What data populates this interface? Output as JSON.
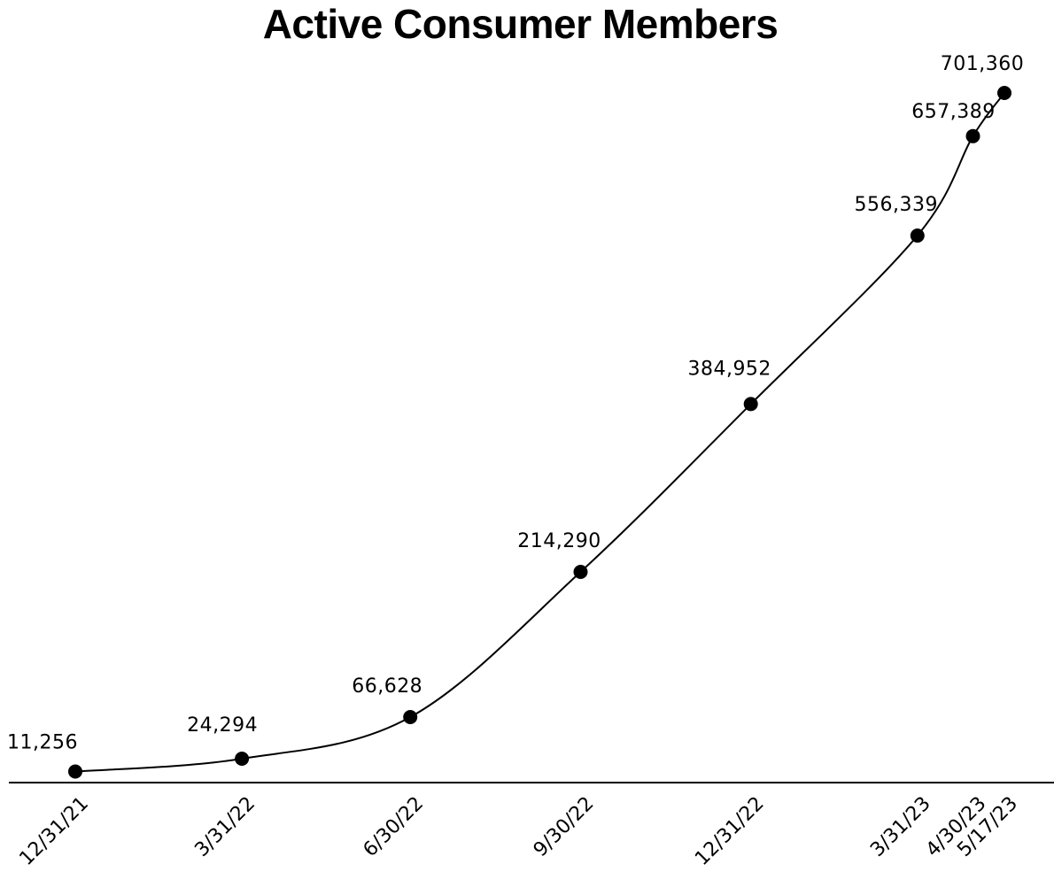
{
  "chart_data": {
    "type": "line",
    "title": "Active Consumer Members",
    "xlabel": "",
    "ylabel": "",
    "categories": [
      "12/31/21",
      "3/31/22",
      "6/30/22",
      "9/30/22",
      "12/31/22",
      "3/31/23",
      "4/30/23",
      "5/17/23"
    ],
    "series": [
      {
        "values": [
          11256,
          24294,
          66628,
          214290,
          384952,
          556339,
          657389,
          701360
        ]
      }
    ],
    "data_labels": [
      "11,256",
      "24,294",
      "66,628",
      "214,290",
      "384,952",
      "556,339",
      "657,389",
      "701,360"
    ],
    "ylim": [
      0,
      701360
    ],
    "grid": false,
    "legend": "none",
    "line_color": "#000000",
    "marker_color": "#000000",
    "background": "#ffffff"
  }
}
